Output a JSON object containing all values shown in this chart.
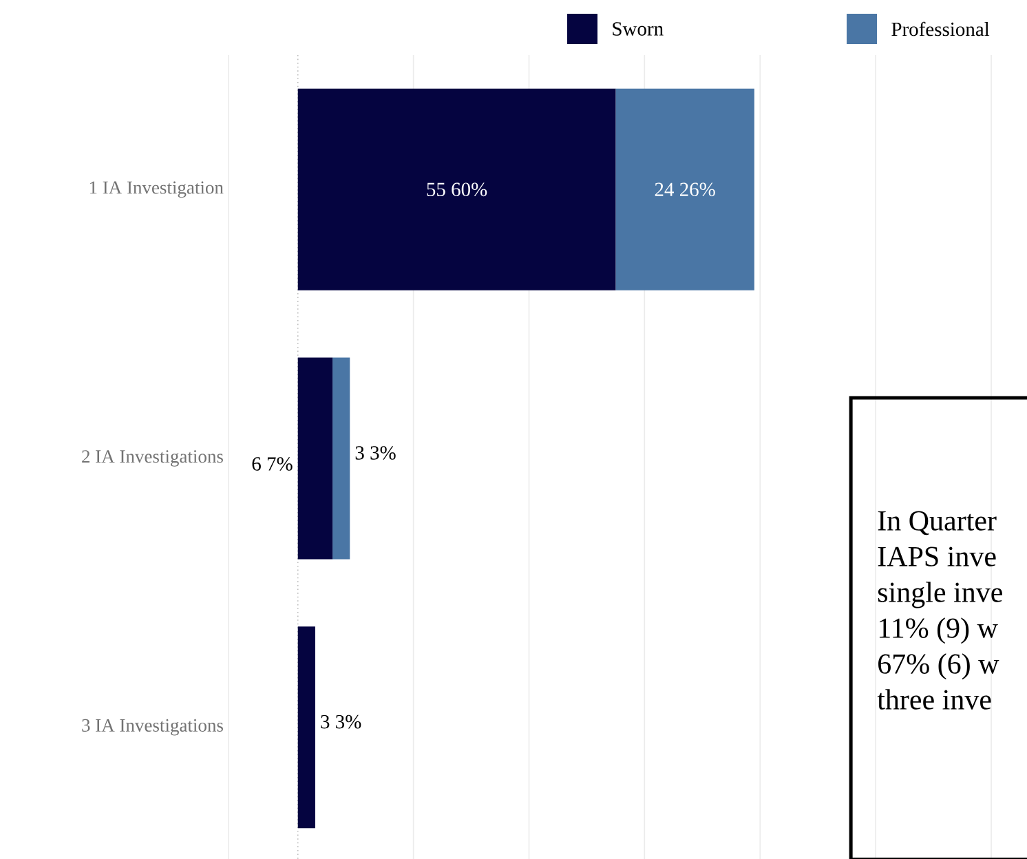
{
  "chart_data": {
    "type": "bar",
    "orientation": "horizontal",
    "stacked": true,
    "categories": [
      "1 IA Investigation",
      "2 IA Investigations",
      "3 IA Investigations"
    ],
    "series": [
      {
        "name": "Sworn",
        "color": "#050440",
        "values": [
          55,
          6,
          3
        ],
        "value_labels": [
          "55 60%",
          "6 7%",
          "3 3%"
        ]
      },
      {
        "name": "Professional",
        "color": "#4a76a5",
        "values": [
          24,
          3,
          null
        ],
        "value_labels": [
          "24 26%",
          "3 3%",
          null
        ]
      }
    ],
    "xlim": [
      -12,
      120
    ],
    "xticks": [
      {
        "value": -12,
        "label": null
      },
      {
        "value": 20,
        "label": null
      },
      {
        "value": 40,
        "label": null
      },
      {
        "value": 60,
        "label": null
      },
      {
        "value": 80,
        "label": null
      },
      {
        "value": 100,
        "label": null
      },
      {
        "value": 120,
        "label": null
      }
    ],
    "tick_labels": "y",
    "grid": "x",
    "legend": "top right",
    "ref_lines": [
      {
        "axis": "x",
        "value": 0,
        "color": "#bbbbbb",
        "line_style": "dotted"
      }
    ],
    "annotations": [
      "In Quarter",
      "IAPS inve",
      "single inve",
      "11% (9) w",
      "67% (6) w",
      "three inve"
    ]
  }
}
